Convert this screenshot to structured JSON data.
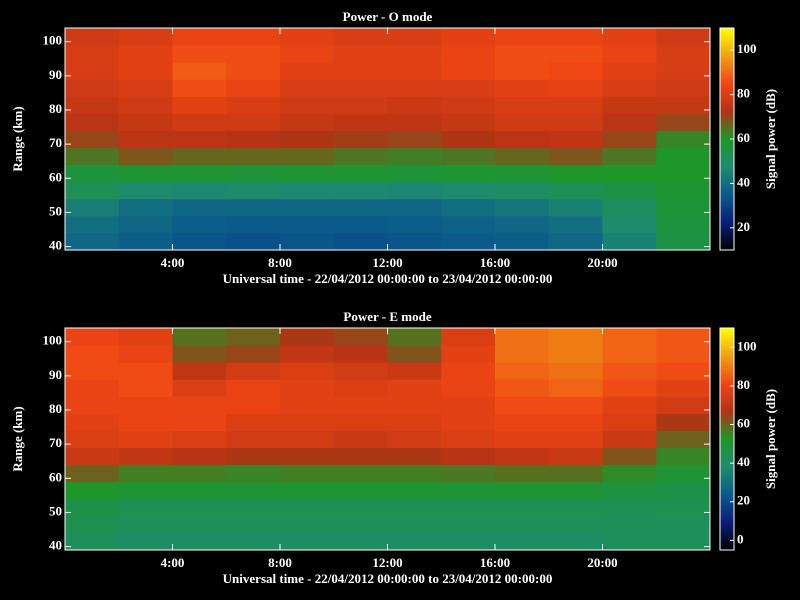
{
  "chart_data": [
    {
      "type": "heatmap",
      "title": "Power - O mode",
      "xlabel": "Universal time - 22/04/2012 00:00:00 to 23/04/2012 00:00:00",
      "ylabel": "Range (km)",
      "colorbar_label": "Signal power (dB)",
      "x_bins": [
        0,
        2,
        4,
        6,
        8,
        10,
        12,
        14,
        16,
        18,
        20,
        22,
        24
      ],
      "y_bins": [
        39,
        44,
        49,
        54,
        59,
        64,
        69,
        74,
        79,
        84,
        89,
        94,
        99,
        104
      ],
      "values": [
        [
          38,
          36,
          34,
          33,
          34,
          33,
          34,
          35,
          36,
          38,
          45,
          55
        ],
        [
          40,
          38,
          36,
          35,
          35,
          35,
          36,
          37,
          38,
          40,
          48,
          56
        ],
        [
          44,
          40,
          38,
          38,
          38,
          38,
          38,
          40,
          42,
          45,
          50,
          57
        ],
        [
          52,
          48,
          47,
          48,
          47,
          47,
          46,
          48,
          50,
          52,
          55,
          58
        ],
        [
          56,
          58,
          58,
          57,
          58,
          58,
          57,
          58,
          58,
          60,
          60,
          60
        ],
        [
          64,
          68,
          66,
          66,
          66,
          64,
          63,
          64,
          66,
          68,
          64,
          60
        ],
        [
          70,
          74,
          74,
          73,
          72,
          71,
          70,
          72,
          74,
          75,
          70,
          62
        ],
        [
          74,
          76,
          78,
          78,
          76,
          75,
          75,
          76,
          78,
          78,
          74,
          70
        ],
        [
          76,
          78,
          82,
          80,
          78,
          78,
          77,
          78,
          80,
          80,
          76,
          76
        ],
        [
          78,
          80,
          86,
          84,
          80,
          80,
          80,
          80,
          82,
          83,
          80,
          78
        ],
        [
          80,
          82,
          88,
          86,
          82,
          82,
          82,
          84,
          86,
          85,
          82,
          80
        ],
        [
          80,
          82,
          86,
          86,
          84,
          82,
          82,
          84,
          86,
          86,
          84,
          80
        ],
        [
          78,
          80,
          84,
          84,
          82,
          80,
          80,
          82,
          84,
          84,
          82,
          78
        ]
      ],
      "xlim": [
        0,
        24
      ],
      "xticks": [
        {
          "value": 4,
          "label": "4:00"
        },
        {
          "value": 8,
          "label": "8:00"
        },
        {
          "value": 12,
          "label": "12:00"
        },
        {
          "value": 16,
          "label": "16:00"
        },
        {
          "value": 20,
          "label": "20:00"
        }
      ],
      "ylim": [
        39,
        104
      ],
      "yticks": [
        40,
        50,
        60,
        70,
        80,
        90,
        100
      ],
      "clim": [
        10,
        110
      ],
      "cticks": [
        20,
        40,
        60,
        80,
        100
      ],
      "colormap": [
        "#000000",
        "#0a1e78",
        "#0a5a8c",
        "#1e8c6e",
        "#1e9628",
        "#b43214",
        "#f04614",
        "#f0a014",
        "#ffff00"
      ]
    },
    {
      "type": "heatmap",
      "title": "Power - E mode",
      "xlabel": "Universal time - 22/04/2012 00:00:00 to 23/04/2012 00:00:00",
      "ylabel": "Range (km)",
      "colorbar_label": "Signal power (dB)",
      "x_bins": [
        0,
        2,
        4,
        6,
        8,
        10,
        12,
        14,
        16,
        18,
        20,
        22,
        24
      ],
      "y_bins": [
        39,
        44,
        49,
        54,
        59,
        64,
        69,
        74,
        79,
        84,
        89,
        94,
        99,
        104
      ],
      "values": [
        [
          42,
          40,
          40,
          40,
          40,
          40,
          40,
          40,
          40,
          40,
          42,
          42
        ],
        [
          44,
          42,
          42,
          42,
          42,
          42,
          42,
          42,
          42,
          42,
          43,
          42
        ],
        [
          46,
          44,
          44,
          44,
          44,
          44,
          44,
          44,
          44,
          44,
          44,
          44
        ],
        [
          52,
          50,
          50,
          50,
          50,
          50,
          50,
          50,
          50,
          50,
          48,
          46
        ],
        [
          60,
          56,
          56,
          55,
          56,
          56,
          56,
          57,
          58,
          58,
          54,
          50
        ],
        [
          72,
          70,
          68,
          66,
          66,
          66,
          66,
          68,
          70,
          72,
          62,
          55
        ],
        [
          76,
          78,
          76,
          74,
          74,
          72,
          74,
          76,
          78,
          78,
          72,
          60
        ],
        [
          78,
          80,
          80,
          76,
          76,
          76,
          76,
          78,
          80,
          80,
          76,
          66
        ],
        [
          80,
          80,
          80,
          80,
          78,
          78,
          78,
          78,
          82,
          82,
          78,
          74
        ],
        [
          80,
          82,
          76,
          80,
          78,
          76,
          78,
          80,
          84,
          86,
          82,
          78
        ],
        [
          82,
          82,
          70,
          74,
          76,
          74,
          72,
          80,
          86,
          88,
          84,
          82
        ],
        [
          82,
          80,
          62,
          64,
          70,
          68,
          62,
          78,
          88,
          90,
          86,
          84
        ],
        [
          80,
          78,
          58,
          60,
          66,
          64,
          58,
          76,
          88,
          90,
          86,
          84
        ]
      ],
      "xlim": [
        0,
        24
      ],
      "xticks": [
        {
          "value": 4,
          "label": "4:00"
        },
        {
          "value": 8,
          "label": "8:00"
        },
        {
          "value": 12,
          "label": "12:00"
        },
        {
          "value": 16,
          "label": "16:00"
        },
        {
          "value": 20,
          "label": "20:00"
        }
      ],
      "ylim": [
        39,
        104
      ],
      "yticks": [
        40,
        50,
        60,
        70,
        80,
        90,
        100
      ],
      "clim": [
        -5,
        110
      ],
      "cticks": [
        0,
        20,
        40,
        60,
        80,
        100
      ],
      "colormap": [
        "#000000",
        "#0a1e78",
        "#0a5a8c",
        "#1e8c6e",
        "#1e9628",
        "#b43214",
        "#f04614",
        "#f0a014",
        "#ffff00"
      ]
    }
  ]
}
